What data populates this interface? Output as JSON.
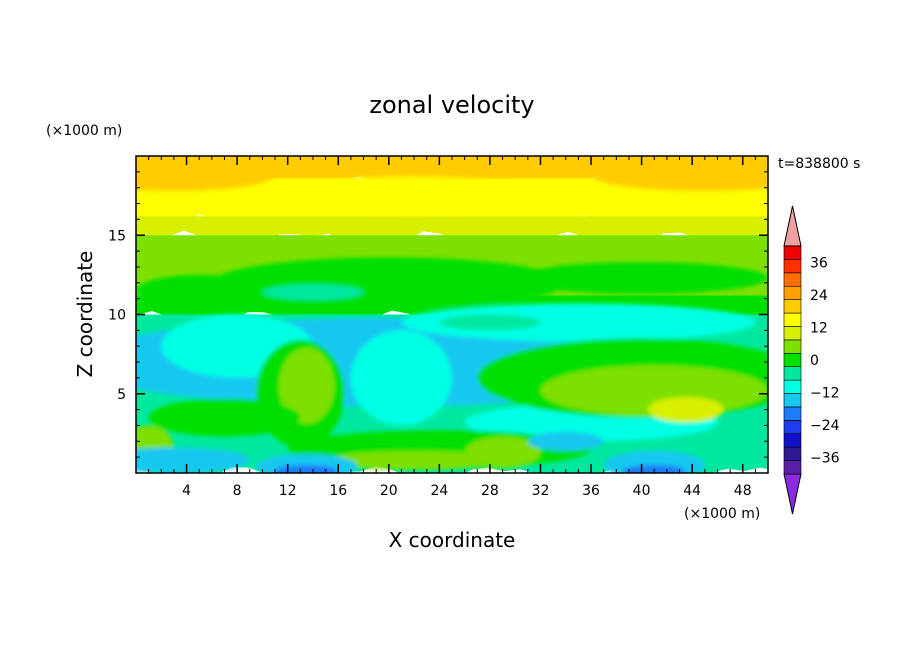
{
  "chart_data": {
    "type": "heatmap",
    "title": "zonal velocity",
    "xlabel": "X coordinate",
    "ylabel": "Z coordinate",
    "x_unit": "(×1000 m)",
    "y_unit": "(×1000 m)",
    "time_label": "t=838800 s",
    "xlim": [
      0,
      50
    ],
    "ylim": [
      0,
      20
    ],
    "x_ticks": [
      4,
      8,
      12,
      16,
      20,
      24,
      28,
      32,
      36,
      40,
      44,
      48
    ],
    "y_ticks": [
      5,
      10,
      15
    ],
    "colorbar": {
      "levels": [
        -42,
        -36,
        -30,
        -24,
        -18,
        -12,
        -6,
        0,
        6,
        12,
        18,
        24,
        30,
        36,
        42
      ],
      "tick_labels": [
        36,
        24,
        12,
        0,
        -12,
        -24,
        -36
      ],
      "colors": [
        "#8a2be2",
        "#5a1fa8",
        "#2c1b8f",
        "#1010c8",
        "#1e3cf0",
        "#1e7cf8",
        "#19c8f0",
        "#00ffe4",
        "#00e8a0",
        "#00e000",
        "#7de000",
        "#d8f000",
        "#ffff00",
        "#ffcc00",
        "#ffa000",
        "#ff7000",
        "#ff3000",
        "#f00000",
        "#f0a0a0"
      ],
      "extend": "both"
    },
    "field_description_rows": [
      {
        "z": 19.5,
        "u": 20
      },
      {
        "z": 18.5,
        "u": 17
      },
      {
        "z": 17,
        "u": 13
      },
      {
        "z": 15.5,
        "u": 9
      },
      {
        "z": 14,
        "u": 2
      },
      {
        "z": 12,
        "u": 0
      },
      {
        "z": 10,
        "u": -5
      },
      {
        "z": 8,
        "u": -8
      },
      {
        "z": 6,
        "u": -8
      },
      {
        "z": 4,
        "u": -5
      },
      {
        "z": 2,
        "u": -8
      },
      {
        "z": 0.5,
        "u": 0
      }
    ]
  }
}
